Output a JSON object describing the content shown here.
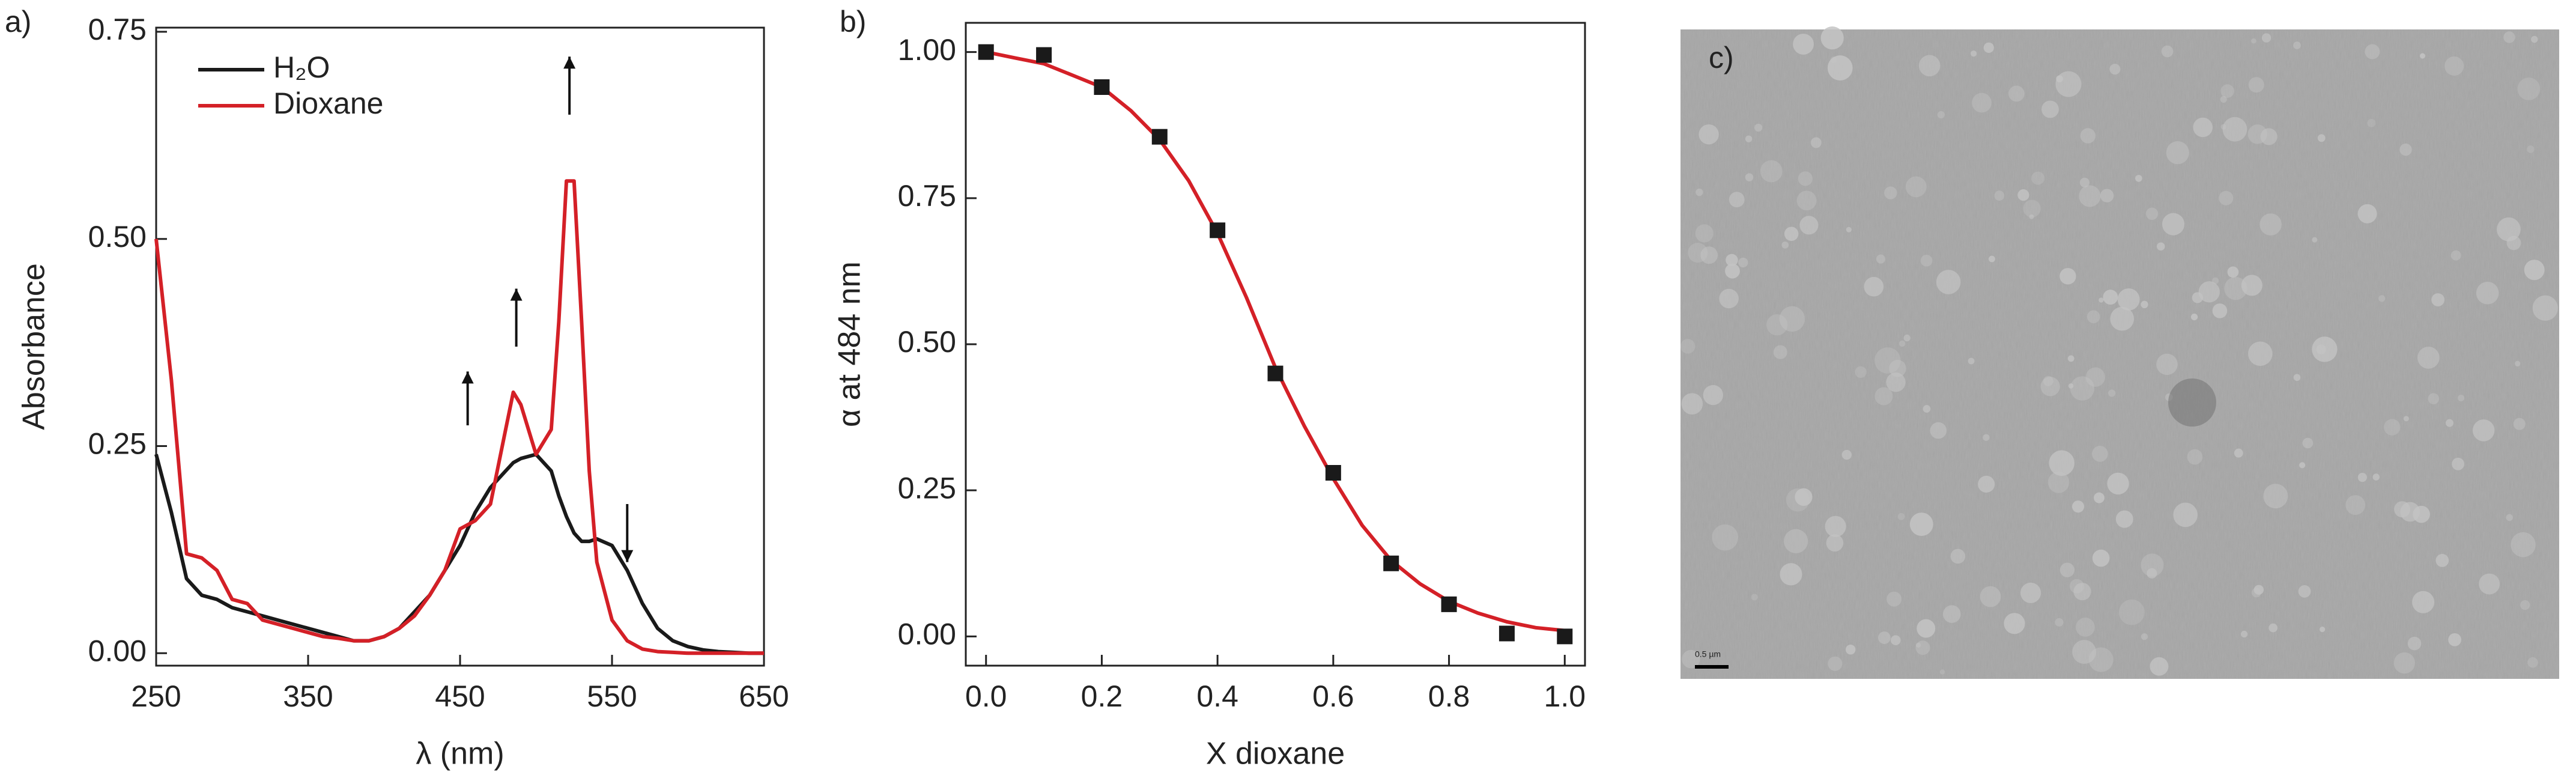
{
  "chart_data": [
    {
      "type": "line",
      "panel_label": "a)",
      "xlabel": "λ (nm)",
      "ylabel": "Absorbance",
      "x": [
        250,
        260,
        270,
        280,
        290,
        300,
        310,
        320,
        330,
        340,
        350,
        360,
        370,
        380,
        390,
        400,
        410,
        420,
        430,
        440,
        450,
        460,
        470,
        480,
        485,
        490,
        500,
        510,
        515,
        520,
        525,
        530,
        535,
        540,
        550,
        560,
        570,
        580,
        590,
        600,
        610,
        620,
        630,
        640,
        650
      ],
      "series": [
        {
          "name": "H₂O",
          "color": "#1a1a1a",
          "values": [
            0.24,
            0.17,
            0.09,
            0.07,
            0.065,
            0.055,
            0.05,
            0.045,
            0.04,
            0.035,
            0.03,
            0.025,
            0.02,
            0.015,
            0.015,
            0.02,
            0.03,
            0.05,
            0.07,
            0.1,
            0.13,
            0.17,
            0.2,
            0.22,
            0.23,
            0.235,
            0.24,
            0.22,
            0.19,
            0.165,
            0.145,
            0.135,
            0.135,
            0.138,
            0.13,
            0.1,
            0.06,
            0.03,
            0.015,
            0.008,
            0.004,
            0.002,
            0.001,
            0,
            0
          ]
        },
        {
          "name": "Dioxane",
          "color": "#d42027",
          "values": [
            0.5,
            0.33,
            0.12,
            0.115,
            0.1,
            0.065,
            0.06,
            0.04,
            0.035,
            0.03,
            0.025,
            0.02,
            0.018,
            0.015,
            0.015,
            0.02,
            0.03,
            0.045,
            0.07,
            0.1,
            0.15,
            0.16,
            0.18,
            0.27,
            0.315,
            0.3,
            0.24,
            0.27,
            0.4,
            0.57,
            0.57,
            0.4,
            0.22,
            0.11,
            0.04,
            0.015,
            0.005,
            0.002,
            0.001,
            0,
            0,
            0,
            0,
            0,
            0
          ]
        }
      ],
      "xlim": [
        250,
        650
      ],
      "xticks": [
        250,
        350,
        450,
        550,
        650
      ],
      "ylim": [
        -0.015,
        0.755
      ],
      "yticks": [
        {
          "value": 0,
          "label": "0.00"
        },
        0.25,
        {
          "value": 0.5,
          "label": "0.50"
        },
        0.75
      ],
      "legend": "upper left"
    },
    {
      "type": "scatter",
      "panel_label": "b)",
      "xlabel": "X dioxane",
      "ylabel": "α at 484 nm",
      "points": {
        "color": "#1a1a1a",
        "x": [
          0,
          0.1,
          0.2,
          0.3,
          0.4,
          0.5,
          0.6,
          0.7,
          0.8,
          0.9,
          1.0
        ],
        "y": [
          1.0,
          0.995,
          0.94,
          0.855,
          0.695,
          0.45,
          0.28,
          0.125,
          0.055,
          0.005,
          0.0
        ]
      },
      "fit": {
        "color": "#d42027",
        "x": [
          0,
          0.05,
          0.1,
          0.15,
          0.2,
          0.25,
          0.3,
          0.35,
          0.4,
          0.45,
          0.5,
          0.55,
          0.6,
          0.65,
          0.7,
          0.75,
          0.8,
          0.85,
          0.9,
          0.95,
          1.0
        ],
        "y": [
          1.0,
          0.99,
          0.98,
          0.96,
          0.94,
          0.9,
          0.85,
          0.78,
          0.69,
          0.58,
          0.46,
          0.36,
          0.27,
          0.19,
          0.13,
          0.09,
          0.06,
          0.04,
          0.025,
          0.015,
          0.01
        ]
      },
      "xlim": [
        -0.035,
        1.035
      ],
      "xticks": [
        {
          "value": 0,
          "label": "0.0"
        },
        0.2,
        0.4,
        0.6,
        0.8,
        {
          "value": 1,
          "label": "1.0"
        }
      ],
      "ylim": [
        -0.05,
        1.05
      ],
      "yticks": [
        {
          "value": 0,
          "label": "0.00"
        },
        0.25,
        {
          "value": 0.5,
          "label": "0.50"
        },
        0.75,
        {
          "value": 1,
          "label": "1.00"
        }
      ]
    }
  ],
  "image_panel": {
    "label": "c)",
    "scale_bar": "0.5 µm"
  }
}
